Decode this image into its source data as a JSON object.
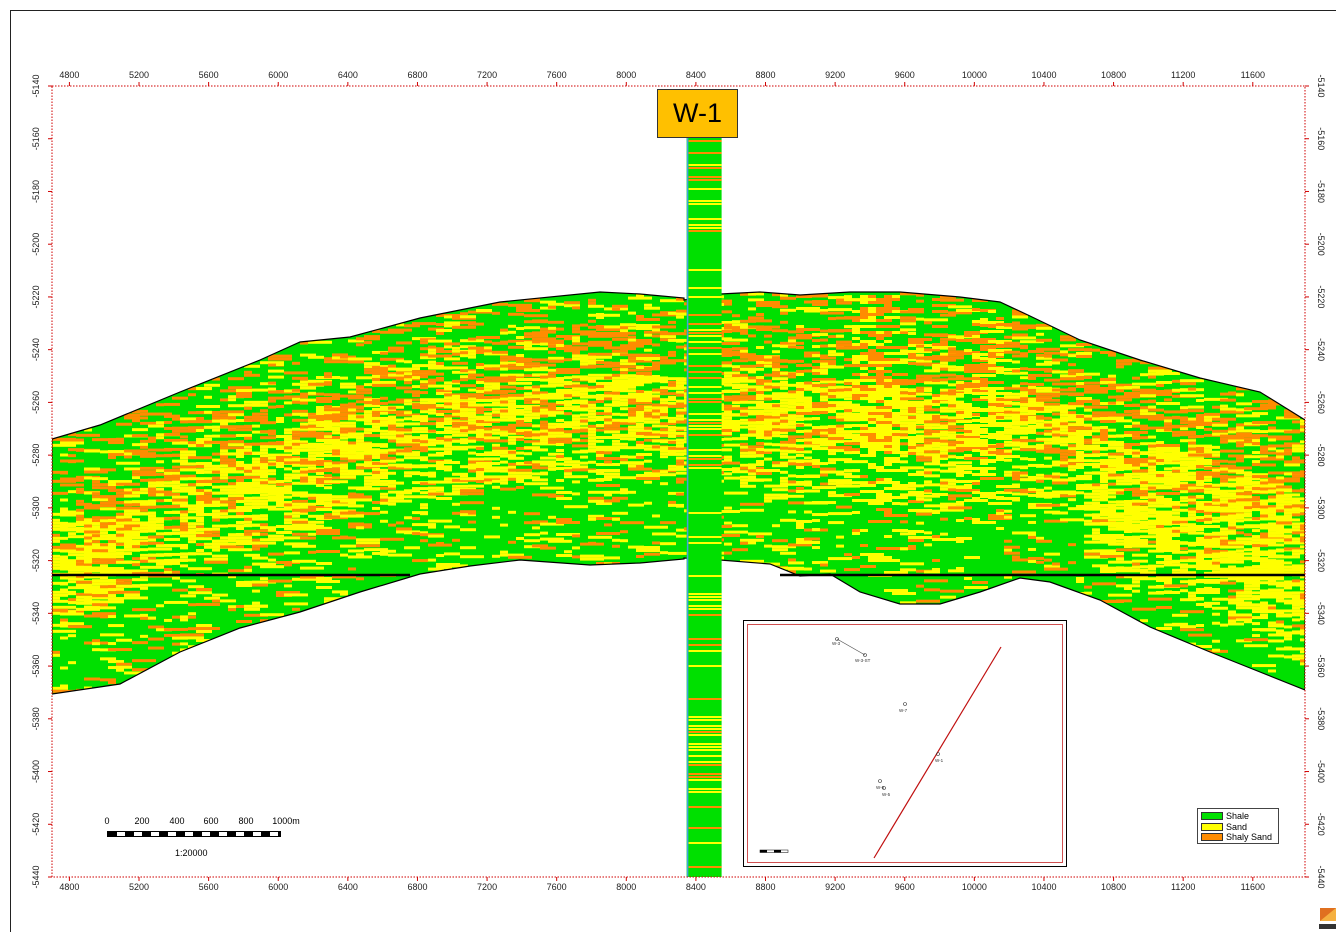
{
  "x_axis": {
    "labels": [
      "4800",
      "5200",
      "5600",
      "6000",
      "6400",
      "6800",
      "7200",
      "7600",
      "8000",
      "8400",
      "8800",
      "9200",
      "9600",
      "10000",
      "10400",
      "10800",
      "11200",
      "11600"
    ],
    "range": [
      4700,
      11900
    ]
  },
  "y_axis": {
    "labels": [
      "-5140",
      "-5160",
      "-5180",
      "-5200",
      "-5220",
      "-5240",
      "-5260",
      "-5280",
      "-5300",
      "-5320",
      "-5340",
      "-5360",
      "-5380",
      "-5400",
      "-5420",
      "-5440"
    ],
    "range": [
      -5140,
      -5440
    ]
  },
  "well": {
    "name": "W-1",
    "x": 8450
  },
  "legend": {
    "items": [
      {
        "label": "Shale",
        "color": "#00e000"
      },
      {
        "label": "Sand",
        "color": "#ffff00"
      },
      {
        "label": "Shaly Sand",
        "color": "#ff8c00"
      }
    ]
  },
  "scale_bar": {
    "labels": [
      "0",
      "200",
      "400",
      "600",
      "800",
      "1000m"
    ],
    "ratio": "1:20000"
  },
  "inset_map": {
    "wells": [
      "W-3",
      "W-3-ST",
      "W-7",
      "W-1",
      "W-6",
      "W-5"
    ]
  },
  "colors": {
    "shale": "#00e000",
    "sand": "#ffff00",
    "shaly_sand": "#ff8c00",
    "axis_red": "#d00000",
    "well_tag": "#ffc000",
    "well_track_base": "#00e0a0"
  },
  "icons": {
    "logo": "petrel-logo-icon"
  }
}
